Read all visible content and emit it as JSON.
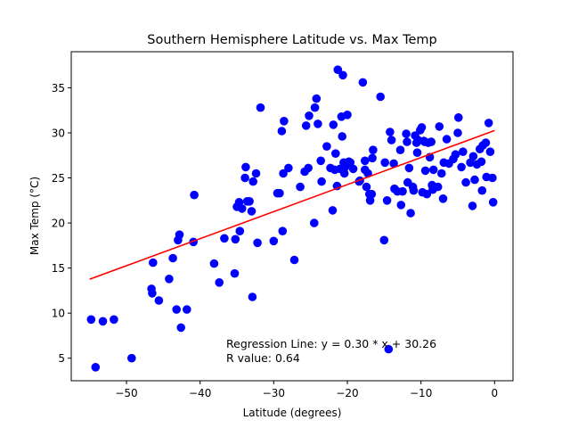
{
  "chart_data": {
    "type": "scatter",
    "title": "Southern Hemisphere Latitude vs. Max Temp",
    "xlabel": "Latitude (degrees)",
    "ylabel": "Max Temp (°C)",
    "xlim": [
      -57.5,
      2.5
    ],
    "ylim": [
      2.5,
      39.0
    ],
    "xticks": [
      -50,
      -40,
      -30,
      -20,
      -10,
      0
    ],
    "xtick_labels": [
      "−50",
      "−40",
      "−30",
      "−20",
      "−10",
      "0"
    ],
    "yticks": [
      5,
      10,
      15,
      20,
      25,
      30,
      35
    ],
    "ytick_labels": [
      "5",
      "10",
      "15",
      "20",
      "25",
      "30",
      "35"
    ],
    "grid": false,
    "point_color": "#0000ff",
    "line_color": "#ff0000",
    "regression": {
      "slope": 0.3,
      "intercept": 30.26,
      "x_range": [
        -55.0,
        0.0
      ]
    },
    "annotation": {
      "line1": "Regression Line: y = 0.30 * x + 30.26",
      "line2": "R value: 0.64"
    },
    "points": [
      [
        -54.8,
        9.3
      ],
      [
        -54.2,
        4.0
      ],
      [
        -53.2,
        9.1
      ],
      [
        -51.7,
        9.3
      ],
      [
        -49.3,
        5.0
      ],
      [
        -46.6,
        12.7
      ],
      [
        -46.5,
        12.2
      ],
      [
        -46.4,
        15.6
      ],
      [
        -45.6,
        11.4
      ],
      [
        -44.2,
        13.8
      ],
      [
        -43.7,
        16.1
      ],
      [
        -43.2,
        10.4
      ],
      [
        -43.0,
        18.1
      ],
      [
        -42.8,
        18.7
      ],
      [
        -42.6,
        8.4
      ],
      [
        -41.8,
        10.4
      ],
      [
        -40.9,
        17.9
      ],
      [
        -40.8,
        23.1
      ],
      [
        -38.1,
        15.5
      ],
      [
        -37.4,
        13.4
      ],
      [
        -36.7,
        18.3
      ],
      [
        -35.3,
        14.4
      ],
      [
        -35.2,
        18.2
      ],
      [
        -35.0,
        21.8
      ],
      [
        -34.7,
        22.3
      ],
      [
        -34.6,
        19.1
      ],
      [
        -34.3,
        21.6
      ],
      [
        -33.9,
        25.0
      ],
      [
        -33.8,
        26.2
      ],
      [
        -33.6,
        22.4
      ],
      [
        -33.3,
        22.4
      ],
      [
        -33.0,
        21.3
      ],
      [
        -32.9,
        11.8
      ],
      [
        -32.8,
        24.6
      ],
      [
        -32.4,
        25.5
      ],
      [
        -32.2,
        17.8
      ],
      [
        -31.8,
        32.8
      ],
      [
        -30.0,
        18.0
      ],
      [
        -29.5,
        23.3
      ],
      [
        -29.2,
        23.3
      ],
      [
        -28.9,
        30.2
      ],
      [
        -28.8,
        19.1
      ],
      [
        -28.7,
        25.5
      ],
      [
        -28.6,
        31.3
      ],
      [
        -28.0,
        26.1
      ],
      [
        -27.2,
        15.9
      ],
      [
        -26.4,
        24.0
      ],
      [
        -25.8,
        25.7
      ],
      [
        -25.6,
        30.8
      ],
      [
        -25.3,
        26.1
      ],
      [
        -25.2,
        31.9
      ],
      [
        -24.5,
        20.0
      ],
      [
        -24.4,
        32.8
      ],
      [
        -24.2,
        33.8
      ],
      [
        -24.0,
        31.0
      ],
      [
        -23.6,
        26.9
      ],
      [
        -23.5,
        24.6
      ],
      [
        -22.8,
        28.5
      ],
      [
        -22.3,
        26.1
      ],
      [
        -22.0,
        21.4
      ],
      [
        -21.9,
        30.9
      ],
      [
        -21.7,
        25.9
      ],
      [
        -21.6,
        27.7
      ],
      [
        -21.4,
        24.1
      ],
      [
        -21.3,
        37.0
      ],
      [
        -21.0,
        26.0
      ],
      [
        -20.8,
        31.8
      ],
      [
        -20.7,
        29.6
      ],
      [
        -20.6,
        36.4
      ],
      [
        -20.5,
        26.7
      ],
      [
        -20.4,
        25.5
      ],
      [
        -20.3,
        26.2
      ],
      [
        -20.0,
        32.0
      ],
      [
        -19.8,
        26.8
      ],
      [
        -19.6,
        26.7
      ],
      [
        -19.2,
        26.0
      ],
      [
        -18.4,
        24.6
      ],
      [
        -18.3,
        24.7
      ],
      [
        -17.9,
        35.6
      ],
      [
        -17.6,
        26.9
      ],
      [
        -17.6,
        25.9
      ],
      [
        -17.4,
        24.0
      ],
      [
        -17.2,
        25.5
      ],
      [
        -17.0,
        23.2
      ],
      [
        -16.9,
        22.5
      ],
      [
        -16.7,
        23.2
      ],
      [
        -16.6,
        27.2
      ],
      [
        -16.5,
        28.1
      ],
      [
        -15.5,
        34.0
      ],
      [
        -15.0,
        18.1
      ],
      [
        -14.9,
        26.7
      ],
      [
        -14.6,
        22.5
      ],
      [
        -14.4,
        6.0
      ],
      [
        -14.2,
        30.1
      ],
      [
        -14.0,
        29.2
      ],
      [
        -13.7,
        26.6
      ],
      [
        -13.6,
        23.8
      ],
      [
        -13.2,
        23.5
      ],
      [
        -12.8,
        28.1
      ],
      [
        -12.7,
        22.0
      ],
      [
        -12.5,
        23.5
      ],
      [
        -12.0,
        29.9
      ],
      [
        -11.9,
        29.0
      ],
      [
        -11.8,
        24.5
      ],
      [
        -11.6,
        26.1
      ],
      [
        -11.4,
        21.1
      ],
      [
        -11.1,
        24.0
      ],
      [
        -11.0,
        23.6
      ],
      [
        -10.8,
        29.7
      ],
      [
        -10.6,
        28.9
      ],
      [
        -10.5,
        27.8
      ],
      [
        -10.4,
        29.2
      ],
      [
        -10.1,
        30.3
      ],
      [
        -9.9,
        30.6
      ],
      [
        -9.8,
        23.4
      ],
      [
        -9.6,
        29.1
      ],
      [
        -9.5,
        29.0
      ],
      [
        -9.4,
        25.8
      ],
      [
        -9.2,
        23.2
      ],
      [
        -9.0,
        28.9
      ],
      [
        -8.8,
        27.3
      ],
      [
        -8.6,
        29.0
      ],
      [
        -8.5,
        24.2
      ],
      [
        -8.4,
        23.7
      ],
      [
        -8.3,
        25.9
      ],
      [
        -7.7,
        24.0
      ],
      [
        -7.5,
        30.7
      ],
      [
        -7.2,
        25.5
      ],
      [
        -7.0,
        22.7
      ],
      [
        -6.9,
        26.7
      ],
      [
        -6.5,
        29.3
      ],
      [
        -6.2,
        26.6
      ],
      [
        -5.6,
        27.1
      ],
      [
        -5.3,
        27.6
      ],
      [
        -5.0,
        30.0
      ],
      [
        -4.9,
        31.7
      ],
      [
        -4.5,
        26.2
      ],
      [
        -4.3,
        27.9
      ],
      [
        -3.9,
        24.5
      ],
      [
        -3.3,
        26.7
      ],
      [
        -3.0,
        21.9
      ],
      [
        -2.9,
        27.4
      ],
      [
        -2.7,
        24.8
      ],
      [
        -2.4,
        26.5
      ],
      [
        -2.0,
        28.2
      ],
      [
        -1.8,
        26.8
      ],
      [
        -1.7,
        23.6
      ],
      [
        -1.6,
        28.6
      ],
      [
        -1.2,
        28.9
      ],
      [
        -1.1,
        25.1
      ],
      [
        -0.8,
        31.1
      ],
      [
        -0.6,
        27.9
      ],
      [
        -0.3,
        25.0
      ],
      [
        -0.2,
        22.3
      ]
    ]
  }
}
